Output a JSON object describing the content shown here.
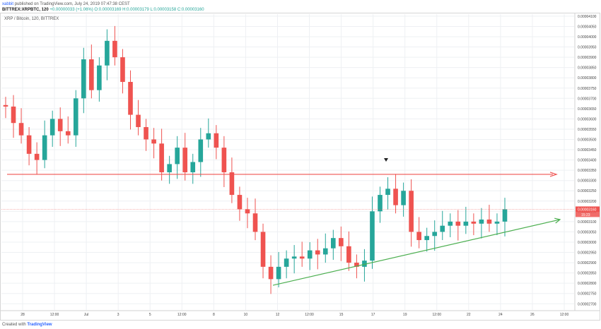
{
  "header": {
    "author": "xabbit",
    "published": "published on TradingView.com, July 24, 2019 07:47:38 CEST",
    "symbol": "BITTREX:XRPBTC, 120",
    "change": "+0.00000033 (+1.06%)",
    "ohlc": "O:0.00003169 H:0.00003179 L:0.00003158 C:0.00003160"
  },
  "chart_title": "XRP / Bitcoin, 120, BITTREX",
  "footer": {
    "prefix": "Created with",
    "brand": "TradingView"
  },
  "colors": {
    "up": "#26a69a",
    "down": "#ef5350",
    "resistance": "#ef5350",
    "support": "#4caf50",
    "price_label_bg": "#ef5350",
    "grid": "#eef0f3"
  },
  "chart_data": {
    "type": "candlestick",
    "title": "XRP / Bitcoin, 120, BITTREX",
    "xlabel": "",
    "ylabel": "",
    "ylim": [
      2.67e-05,
      4.11e-05
    ],
    "grid": true,
    "x_ticks": [
      "28",
      "12:00",
      "Jul",
      "3",
      "5",
      "12:00",
      "8",
      "10",
      "12",
      "12:00",
      "15",
      "17",
      "19",
      "12:00",
      "22",
      "24",
      "26",
      "12:00"
    ],
    "y_ticks": [
      "0.00004100",
      "0.00004050",
      "0.00004000",
      "0.00003950",
      "0.00003900",
      "0.00003850",
      "0.00003800",
      "0.00003750",
      "0.00003700",
      "0.00003650",
      "0.00003600",
      "0.00003550",
      "0.00003500",
      "0.00003450",
      "0.00003400",
      "0.00003350",
      "0.00003300",
      "0.00003250",
      "0.00003200",
      "0.00003150",
      "0.00003100",
      "0.00003050",
      "0.00003000",
      "0.00002950",
      "0.00002900",
      "0.00002850",
      "0.00002800",
      "0.00002750",
      "0.00002700"
    ],
    "price_line": {
      "value": 3.16e-05,
      "label": "0.00003160",
      "countdown": "15:23"
    },
    "resistance_level": 3.33e-05,
    "support_trendline": [
      {
        "x": "12",
        "y": 2.79e-05
      },
      {
        "x": "26 12:00",
        "y": 3.11e-05
      }
    ],
    "series": [
      {
        "values": [
          3.66e-05,
          3.58e-05,
          3.52e-05,
          3.43e-05,
          3.4e-05,
          3.52e-05,
          3.6e-05,
          3.54e-05,
          3.52e-05,
          3.7e-05,
          3.89e-05,
          3.74e-05,
          3.86e-05,
          3.98e-05,
          3.9e-05,
          3.78e-05,
          3.62e-05,
          3.56e-05,
          3.5e-05,
          3.48e-05,
          3.34e-05,
          3.38e-05,
          3.46e-05,
          3.34e-05,
          3.39e-05,
          3.5e-05,
          3.53e-05,
          3.46e-05,
          3.34e-05,
          3.23e-05,
          3.16e-05,
          3.14e-05,
          3.05e-05,
          2.88e-05,
          2.82e-05,
          2.88e-05,
          2.92e-05,
          2.93e-05,
          2.92e-05,
          2.96e-05,
          2.94e-05,
          2.97e-05,
          3.02e-05,
          2.98e-05,
          2.9e-05,
          2.88e-05,
          2.91e-05,
          3.15e-05,
          3.23e-05,
          3.26e-05,
          3.18e-05,
          3.25e-05,
          3.05e-05,
          3.01e-05,
          3.03e-05,
          3.05e-05,
          3.08e-05,
          3.1e-05,
          3.08e-05,
          3.1e-05,
          3.09e-05,
          3.11e-05,
          3.09e-05,
          3.1e-05,
          3.16e-05
        ]
      }
    ]
  }
}
